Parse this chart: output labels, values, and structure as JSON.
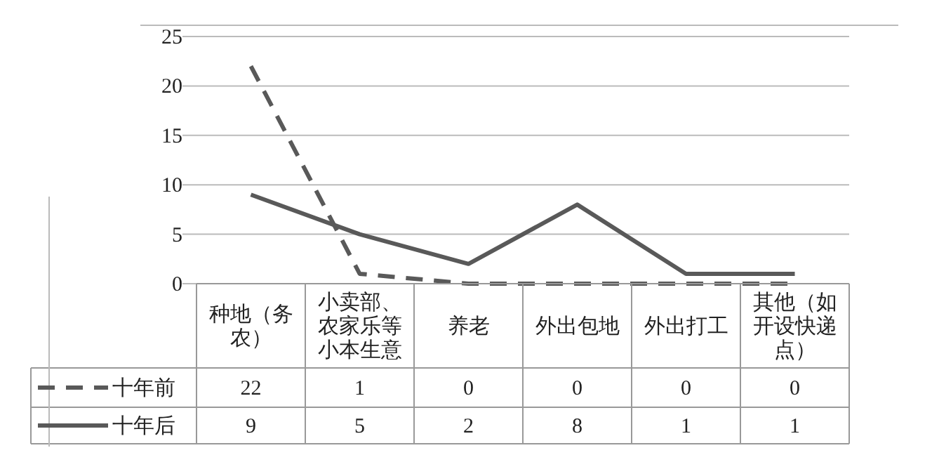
{
  "chart_data": {
    "type": "line",
    "categories": [
      "种地（务农）",
      "小卖部、农家乐等小本生意",
      "养老",
      "外出包地",
      "外出打工",
      "其他（如开设快递点）"
    ],
    "series": [
      {
        "name": "十年前",
        "color": "#595959",
        "line_style": "dashed",
        "values": [
          22,
          1,
          0,
          0,
          0,
          0
        ]
      },
      {
        "name": "十年后",
        "color": "#595959",
        "line_style": "solid",
        "values": [
          9,
          5,
          2,
          8,
          1,
          1
        ]
      }
    ],
    "ylim": [
      0,
      25
    ],
    "yticks": [
      0,
      5,
      10,
      15,
      20,
      25
    ],
    "grid": "y",
    "legend": "bottom",
    "data_labels": true,
    "marker": "none"
  }
}
